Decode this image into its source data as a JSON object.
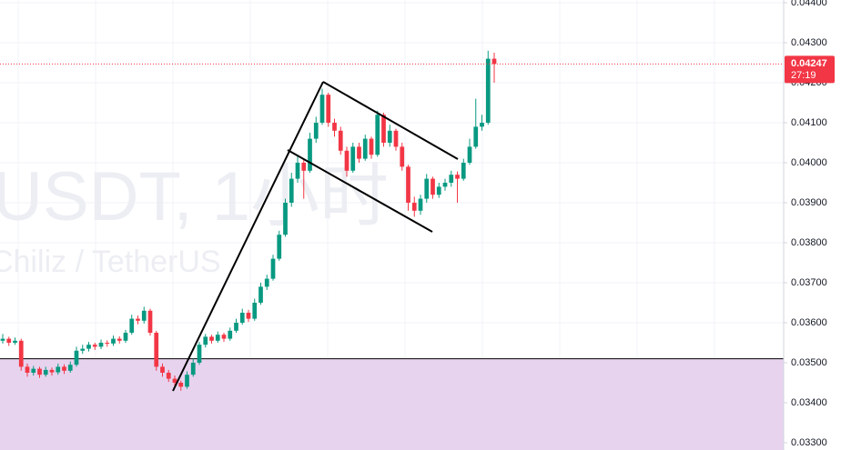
{
  "chart_data": {
    "type": "candlestick",
    "watermark": "USDT, 1小时",
    "watermark_subtitle": "Chiliz / TetherUS",
    "up_color": "#089981",
    "down_color": "#f23645",
    "last_price": 0.04247,
    "countdown": "27:19",
    "support_level": 0.0351,
    "ylim": [
      0.033,
      0.044
    ],
    "yticks": [
      {
        "value": 0.033,
        "label": "0.03300"
      },
      {
        "value": 0.034,
        "label": "0.03400"
      },
      {
        "value": 0.035,
        "label": "0.03500"
      },
      {
        "value": 0.036,
        "label": "0.03600"
      },
      {
        "value": 0.037,
        "label": "0.03700"
      },
      {
        "value": 0.038,
        "label": "0.03800"
      },
      {
        "value": 0.039,
        "label": "0.03900"
      },
      {
        "value": 0.04,
        "label": "0.04000"
      },
      {
        "value": 0.041,
        "label": "0.04100"
      },
      {
        "value": 0.042,
        "label": "0.04200"
      },
      {
        "value": 0.043,
        "label": "0.04300"
      },
      {
        "value": 0.044,
        "label": "0.04400"
      }
    ],
    "grid": true,
    "open": [
      0.03555,
      0.0356,
      0.0355,
      0.03555,
      0.0349,
      0.03475,
      0.03485,
      0.0347,
      0.03482,
      0.03476,
      0.0349,
      0.0348,
      0.03495,
      0.0353,
      0.03535,
      0.03545,
      0.0354,
      0.0355,
      0.03548,
      0.0356,
      0.03555,
      0.03575,
      0.0361,
      0.03605,
      0.0363,
      0.03575,
      0.0349,
      0.03475,
      0.0346,
      0.0345,
      0.0344,
      0.0347,
      0.035,
      0.03545,
      0.03565,
      0.03555,
      0.0357,
      0.0356,
      0.0358,
      0.036,
      0.03625,
      0.0361,
      0.0365,
      0.0369,
      0.0371,
      0.0376,
      0.0382,
      0.039,
      0.0396,
      0.04,
      0.0398,
      0.0406,
      0.041,
      0.0417,
      0.041,
      0.0408,
      0.0403,
      0.0398,
      0.0404,
      0.0401,
      0.0406,
      0.0402,
      0.0412,
      0.0405,
      0.0408,
      0.0404,
      0.0399,
      0.039,
      0.0388,
      0.0391,
      0.0396,
      0.0392,
      0.0394,
      0.0395,
      0.0397,
      0.0396,
      0.04,
      0.0404,
      0.0409,
      0.041,
      0.0426
    ],
    "high": [
      0.03572,
      0.03565,
      0.03563,
      0.0356,
      0.03498,
      0.03492,
      0.0349,
      0.0349,
      0.03488,
      0.03498,
      0.03496,
      0.03503,
      0.0354,
      0.03545,
      0.03552,
      0.0355,
      0.03558,
      0.03556,
      0.03568,
      0.03566,
      0.03582,
      0.0362,
      0.03618,
      0.0364,
      0.03635,
      0.0358,
      0.03498,
      0.03482,
      0.03468,
      0.03455,
      0.03478,
      0.0351,
      0.03552,
      0.03572,
      0.0357,
      0.03578,
      0.03575,
      0.03588,
      0.0361,
      0.03635,
      0.03632,
      0.0366,
      0.037,
      0.0372,
      0.0377,
      0.0383,
      0.0391,
      0.03975,
      0.0402,
      0.0401,
      0.04075,
      0.04115,
      0.04185,
      0.04175,
      0.0411,
      0.0409,
      0.0404,
      0.0405,
      0.0405,
      0.0407,
      0.04065,
      0.0413,
      0.04125,
      0.04095,
      0.04085,
      0.0405,
      0.03995,
      0.03915,
      0.0392,
      0.03972,
      0.03965,
      0.0395,
      0.0396,
      0.0398,
      0.03978,
      0.0401,
      0.0406,
      0.0416,
      0.0412,
      0.0428,
      0.04275
    ],
    "low": [
      0.03548,
      0.03542,
      0.03545,
      0.0348,
      0.03465,
      0.03468,
      0.03462,
      0.03465,
      0.03468,
      0.0347,
      0.03472,
      0.03475,
      0.0349,
      0.03522,
      0.03528,
      0.03532,
      0.03534,
      0.0354,
      0.03542,
      0.03548,
      0.0355,
      0.0357,
      0.03596,
      0.03598,
      0.03568,
      0.0348,
      0.03465,
      0.03452,
      0.0344,
      0.0343,
      0.03435,
      0.03465,
      0.03495,
      0.03538,
      0.03548,
      0.0355,
      0.03552,
      0.03555,
      0.03575,
      0.03595,
      0.03602,
      0.03605,
      0.03645,
      0.03682,
      0.03705,
      0.03755,
      0.03815,
      0.0389,
      0.0395,
      0.0391,
      0.03975,
      0.0405,
      0.04095,
      0.0409,
      0.04065,
      0.0402,
      0.03965,
      0.03975,
      0.04,
      0.04005,
      0.0401,
      0.04015,
      0.0404,
      0.0404,
      0.0403,
      0.0398,
      0.0388,
      0.03865,
      0.0387,
      0.039,
      0.0391,
      0.03912,
      0.0393,
      0.0394,
      0.039,
      0.03955,
      0.03995,
      0.04035,
      0.0408,
      0.04095,
      0.042
    ],
    "close": [
      0.0356,
      0.0355,
      0.03555,
      0.0349,
      0.03475,
      0.03485,
      0.0347,
      0.03482,
      0.03476,
      0.0349,
      0.0348,
      0.03495,
      0.0353,
      0.03535,
      0.03545,
      0.0354,
      0.0355,
      0.03548,
      0.0356,
      0.03555,
      0.03575,
      0.0361,
      0.03605,
      0.0363,
      0.03575,
      0.0349,
      0.03475,
      0.0346,
      0.0345,
      0.0344,
      0.0347,
      0.035,
      0.03545,
      0.03565,
      0.03555,
      0.0357,
      0.0356,
      0.0358,
      0.036,
      0.03625,
      0.0361,
      0.0365,
      0.0369,
      0.0371,
      0.0376,
      0.0382,
      0.039,
      0.0396,
      0.04,
      0.0398,
      0.0406,
      0.041,
      0.0417,
      0.041,
      0.0408,
      0.0403,
      0.0398,
      0.0404,
      0.0401,
      0.0406,
      0.0402,
      0.0412,
      0.0405,
      0.0408,
      0.0404,
      0.0399,
      0.039,
      0.0388,
      0.0391,
      0.0396,
      0.0392,
      0.0394,
      0.0395,
      0.0397,
      0.0396,
      0.04,
      0.0404,
      0.0409,
      0.041,
      0.0426,
      0.04247
    ]
  }
}
